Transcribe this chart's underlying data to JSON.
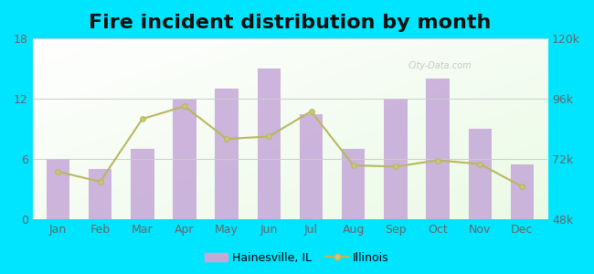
{
  "title": "Fire incident distribution by month",
  "months": [
    "Jan",
    "Feb",
    "Mar",
    "Apr",
    "May",
    "Jun",
    "Jul",
    "Aug",
    "Sep",
    "Oct",
    "Nov",
    "Dec"
  ],
  "bar_values": [
    6,
    5,
    7,
    12,
    13,
    15,
    10.5,
    7,
    12,
    14,
    9,
    5.5
  ],
  "line_values": [
    67000,
    63000,
    88000,
    93000,
    80000,
    81000,
    91000,
    69500,
    69000,
    71500,
    70000,
    61000
  ],
  "bar_color": "#c5a8d8",
  "bar_edge_color": "#b090c0",
  "line_color": "#b8b860",
  "line_marker": "o",
  "line_marker_color": "#c8c878",
  "background_outer": "#00e5ff",
  "grid_color": "#cccccc",
  "ylim_left": [
    0,
    18
  ],
  "ylim_right": [
    48000,
    120000
  ],
  "yticks_left": [
    0,
    6,
    12,
    18
  ],
  "yticks_right": [
    48000,
    72000,
    96000,
    120000
  ],
  "ytick_labels_right": [
    "48k",
    "72k",
    "96k",
    "120k"
  ],
  "title_fontsize": 16,
  "tick_fontsize": 9,
  "legend_label_bar": "Hainesville, IL",
  "legend_label_line": "Illinois",
  "watermark": "City-Data.com"
}
